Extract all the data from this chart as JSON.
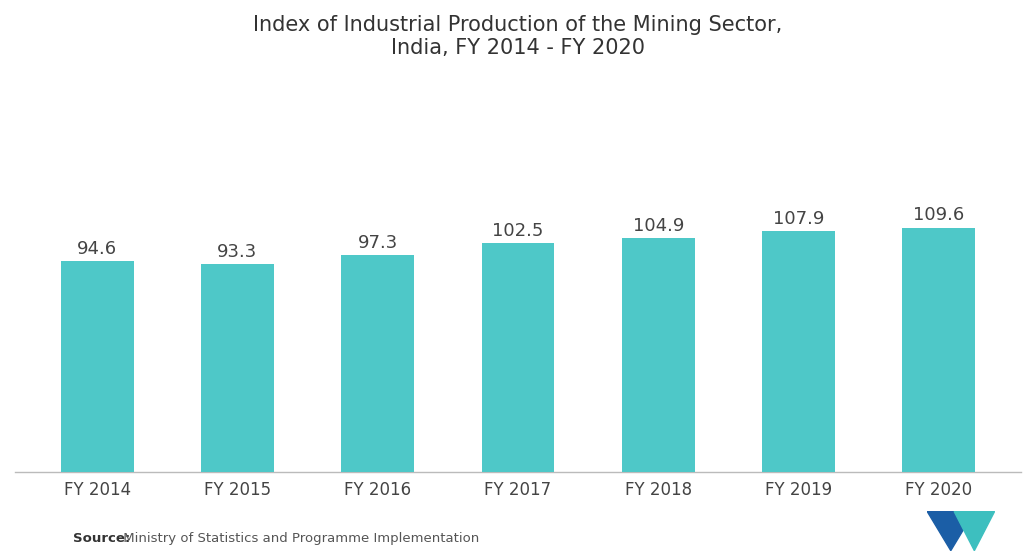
{
  "title": "Index of Industrial Production of the Mining Sector,\nIndia, FY 2014 - FY 2020",
  "categories": [
    "FY 2014",
    "FY 2015",
    "FY 2016",
    "FY 2017",
    "FY 2018",
    "FY 2019",
    "FY 2020"
  ],
  "values": [
    94.6,
    93.3,
    97.3,
    102.5,
    104.9,
    107.9,
    109.6
  ],
  "bar_color": "#4EC8C8",
  "background_color": "#ffffff",
  "title_fontsize": 15,
  "label_fontsize": 13,
  "tick_fontsize": 12,
  "source_label_bold": "Source:",
  "source_label_normal": " Ministry of Statistics and Programme Implementation",
  "ylim": [
    0,
    175
  ],
  "bar_width": 0.52,
  "logo_left_color": "#1B6CA8",
  "logo_right_color": "#3DBFBF"
}
